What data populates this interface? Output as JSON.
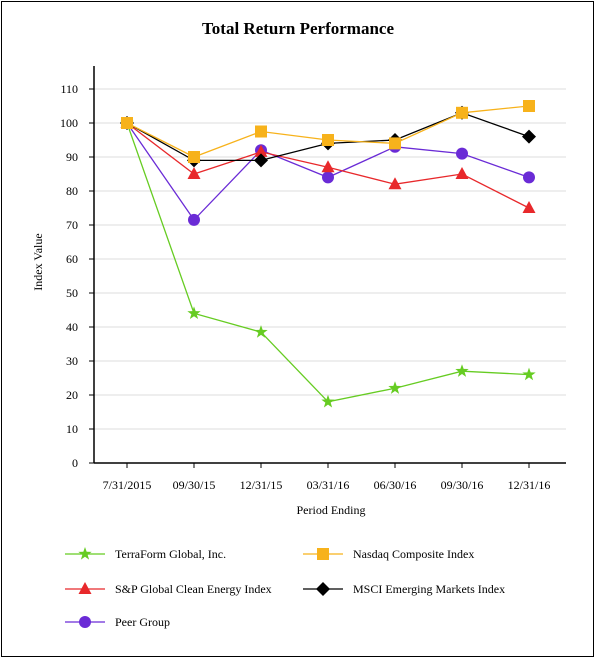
{
  "chart_data": {
    "type": "line",
    "title": "Total Return Performance",
    "xlabel": "Period Ending",
    "ylabel": "Index Value",
    "categories": [
      "7/31/2015",
      "09/30/15",
      "12/31/15",
      "03/31/16",
      "06/30/16",
      "09/30/16",
      "12/31/16"
    ],
    "ylim": [
      0,
      110
    ],
    "yticks": [
      0,
      10,
      20,
      30,
      40,
      50,
      60,
      70,
      80,
      90,
      100,
      110
    ],
    "grid": true,
    "legend_position": "bottom",
    "series": [
      {
        "name": "TerraForm Global, Inc.",
        "color": "#66cc22",
        "marker": "star",
        "values": [
          100,
          44,
          38.5,
          18,
          22,
          27,
          26
        ]
      },
      {
        "name": "Nasdaq Composite Index",
        "color": "#f7b21b",
        "marker": "square",
        "values": [
          100,
          90,
          97.5,
          95,
          94,
          103,
          105
        ]
      },
      {
        "name": "S&P Global Clean Energy Index",
        "color": "#e8282b",
        "marker": "triangle",
        "values": [
          100,
          85,
          91.5,
          87,
          82,
          85,
          75
        ]
      },
      {
        "name": "MSCI Emerging Markets Index",
        "color": "#000000",
        "marker": "diamond",
        "values": [
          100,
          89,
          89,
          94,
          95,
          103,
          96
        ]
      },
      {
        "name": "Peer Group",
        "color": "#6a2bd6",
        "marker": "circle",
        "values": [
          100,
          71.5,
          92,
          84,
          93,
          91,
          84
        ]
      }
    ]
  }
}
